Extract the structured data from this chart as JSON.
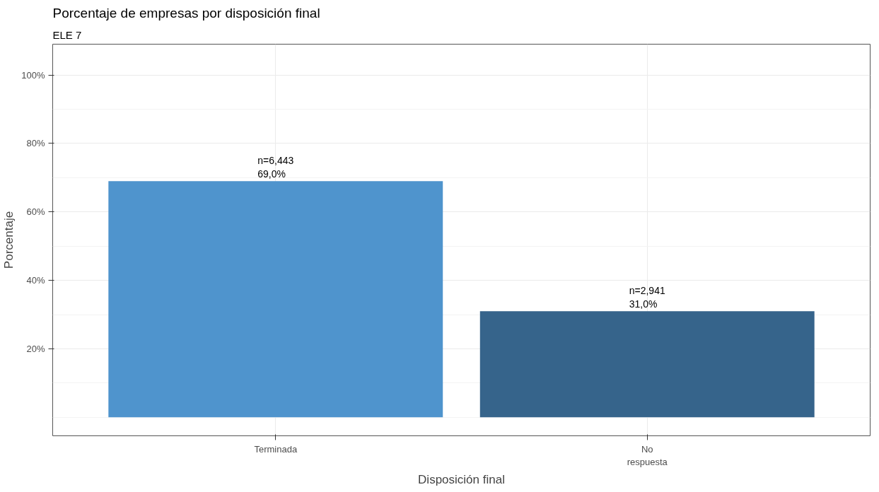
{
  "chart_data": {
    "type": "bar",
    "title": "Porcentaje de empresas por disposición final",
    "subtitle": "ELE 7",
    "xlabel": "Disposición final",
    "ylabel": "Porcentaje",
    "categories": [
      "Terminada",
      "No\nrespuesta"
    ],
    "values": [
      69.0,
      31.0
    ],
    "colors": [
      "#4f94cd",
      "#36648b"
    ],
    "value_labels": [
      "n=6,443\n69,0%",
      "n=2,941\n31,0%"
    ],
    "ylim": [
      -5.4,
      109
    ],
    "yticks": [
      {
        "value": 20,
        "label": "20%"
      },
      {
        "value": 40,
        "label": "40%"
      },
      {
        "value": 60,
        "label": "60%"
      },
      {
        "value": 80,
        "label": "80%"
      },
      {
        "value": 100,
        "label": "100%"
      }
    ],
    "grid": true
  }
}
